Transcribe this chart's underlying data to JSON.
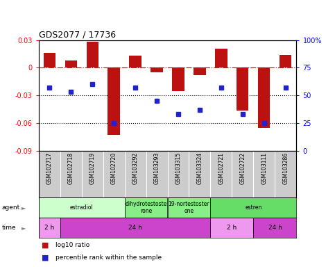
{
  "title": "GDS2077 / 17736",
  "samples": [
    "GSM102717",
    "GSM102718",
    "GSM102719",
    "GSM102720",
    "GSM103292",
    "GSM103293",
    "GSM103315",
    "GSM103324",
    "GSM102721",
    "GSM102722",
    "GSM103111",
    "GSM103286"
  ],
  "log10_ratio": [
    0.016,
    0.008,
    0.028,
    -0.073,
    0.013,
    -0.005,
    -0.025,
    -0.008,
    0.021,
    -0.046,
    -0.065,
    0.014
  ],
  "percentile": [
    57,
    53,
    60,
    25,
    57,
    45,
    33,
    37,
    57,
    33,
    25,
    57
  ],
  "bar_color": "#bb1111",
  "dot_color": "#2222cc",
  "ylim_left": [
    -0.09,
    0.03
  ],
  "ylim_right": [
    0,
    100
  ],
  "yticks_left": [
    0.03,
    0.0,
    -0.03,
    -0.06,
    -0.09
  ],
  "yticks_right": [
    100,
    75,
    50,
    25,
    0
  ],
  "hlines_dotted": [
    -0.03,
    -0.06
  ],
  "agent_groups": [
    {
      "label": "estradiol",
      "start": 0,
      "end": 4,
      "color": "#ccffcc"
    },
    {
      "label": "dihydrotestoste\nrone",
      "start": 4,
      "end": 6,
      "color": "#88ee88"
    },
    {
      "label": "19-nortestoster\none",
      "start": 6,
      "end": 8,
      "color": "#88ee88"
    },
    {
      "label": "estren",
      "start": 8,
      "end": 12,
      "color": "#66dd66"
    }
  ],
  "time_groups": [
    {
      "label": "2 h",
      "start": 0,
      "end": 1,
      "color": "#ee99ee"
    },
    {
      "label": "24 h",
      "start": 1,
      "end": 8,
      "color": "#cc44cc"
    },
    {
      "label": "2 h",
      "start": 8,
      "end": 10,
      "color": "#ee99ee"
    },
    {
      "label": "24 h",
      "start": 10,
      "end": 12,
      "color": "#cc44cc"
    }
  ],
  "legend_bar_label": "log10 ratio",
  "legend_dot_label": "percentile rank within the sample",
  "bg_color": "#ffffff",
  "label_bg_color": "#cccccc",
  "n_samples": 12
}
